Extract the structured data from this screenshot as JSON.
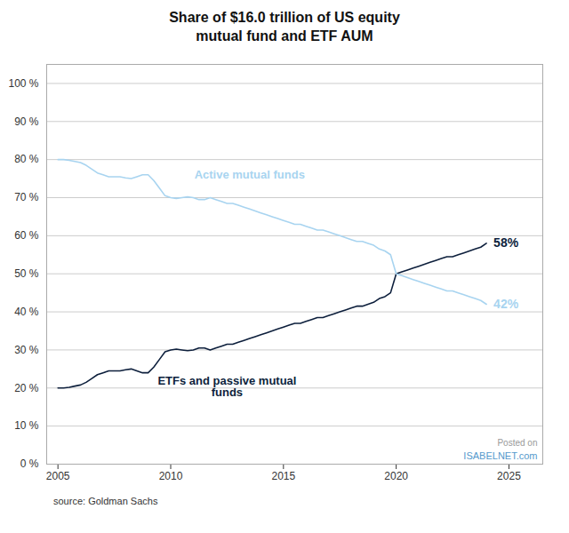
{
  "chart_data": {
    "type": "line",
    "title": "Share of $16.0 trillion of US equity\nmutual fund and ETF AUM",
    "caption": "source: Goldman Sachs",
    "x": [
      2005.0,
      2005.25,
      2005.5,
      2005.75,
      2006.0,
      2006.25,
      2006.5,
      2006.75,
      2007.0,
      2007.25,
      2007.5,
      2007.75,
      2008.0,
      2008.25,
      2008.5,
      2008.75,
      2009.0,
      2009.25,
      2009.5,
      2009.75,
      2010.0,
      2010.25,
      2010.5,
      2010.75,
      2011.0,
      2011.25,
      2011.5,
      2011.75,
      2012.0,
      2012.25,
      2012.5,
      2012.75,
      2013.0,
      2013.25,
      2013.5,
      2013.75,
      2014.0,
      2014.25,
      2014.5,
      2014.75,
      2015.0,
      2015.25,
      2015.5,
      2015.75,
      2016.0,
      2016.25,
      2016.5,
      2016.75,
      2017.0,
      2017.25,
      2017.5,
      2017.75,
      2018.0,
      2018.25,
      2018.5,
      2018.75,
      2019.0,
      2019.25,
      2019.5,
      2019.75,
      2020.0,
      2020.25,
      2020.5,
      2020.75,
      2021.0,
      2021.25,
      2021.5,
      2021.75,
      2022.0,
      2022.25,
      2022.5,
      2022.75,
      2023.0,
      2023.25,
      2023.5,
      2023.75,
      2024.0
    ],
    "series": [
      {
        "name": "ETFs and passive mutual\nfunds",
        "color": "#0d1f3c",
        "values": [
          20.0,
          20.0,
          20.2,
          20.5,
          20.8,
          21.5,
          22.5,
          23.5,
          24.0,
          24.5,
          24.5,
          24.5,
          24.8,
          25.0,
          24.5,
          24.0,
          24.0,
          25.5,
          27.5,
          29.5,
          30.0,
          30.2,
          30.0,
          29.8,
          30.0,
          30.5,
          30.5,
          30.0,
          30.5,
          31.0,
          31.5,
          31.5,
          32.0,
          32.5,
          33.0,
          33.5,
          34.0,
          34.5,
          35.0,
          35.5,
          36.0,
          36.5,
          37.0,
          37.0,
          37.5,
          38.0,
          38.5,
          38.5,
          39.0,
          39.5,
          40.0,
          40.5,
          41.0,
          41.5,
          41.5,
          42.0,
          42.5,
          43.5,
          44.0,
          45.0,
          50.0,
          50.5,
          51.0,
          51.5,
          52.0,
          52.5,
          53.0,
          53.5,
          54.0,
          54.5,
          54.5,
          55.0,
          55.5,
          56.0,
          56.5,
          57.0,
          58.0
        ]
      },
      {
        "name": "Active mutual funds",
        "color": "#a8d4f0",
        "values": [
          80.0,
          80.0,
          79.8,
          79.5,
          79.2,
          78.5,
          77.5,
          76.5,
          76.0,
          75.5,
          75.5,
          75.5,
          75.2,
          75.0,
          75.5,
          76.0,
          76.0,
          74.5,
          72.5,
          70.5,
          70.0,
          69.8,
          70.0,
          70.2,
          70.0,
          69.5,
          69.5,
          70.0,
          69.5,
          69.0,
          68.5,
          68.5,
          68.0,
          67.5,
          67.0,
          66.5,
          66.0,
          65.5,
          65.0,
          64.5,
          64.0,
          63.5,
          63.0,
          63.0,
          62.5,
          62.0,
          61.5,
          61.5,
          61.0,
          60.5,
          60.0,
          59.5,
          59.0,
          58.5,
          58.5,
          58.0,
          57.5,
          56.5,
          56.0,
          55.0,
          50.0,
          49.5,
          49.0,
          48.5,
          48.0,
          47.5,
          47.0,
          46.5,
          46.0,
          45.5,
          45.5,
          45.0,
          44.5,
          44.0,
          43.5,
          43.0,
          42.0
        ]
      }
    ],
    "annotations": [
      {
        "text": "58%",
        "value": 58,
        "color": "#0d1f3c"
      },
      {
        "text": "42%",
        "value": 42,
        "color": "#a8d4f0"
      },
      {
        "text": "Posted on",
        "color": "#999999"
      },
      {
        "text": "ISABELNET.com",
        "color": "#5599cc"
      }
    ],
    "xlim": [
      2004.5,
      2026.5
    ],
    "ylim": [
      0,
      105
    ],
    "xticks": [
      2005,
      2010,
      2015,
      2020,
      2025
    ],
    "yticks": [
      {
        "value": 0,
        "label": "0 %"
      },
      {
        "value": 10,
        "label": "10 %"
      },
      {
        "value": 20,
        "label": "20 %"
      },
      {
        "value": 30,
        "label": "30 %"
      },
      {
        "value": 40,
        "label": "40 %"
      },
      {
        "value": 50,
        "label": "50 %"
      },
      {
        "value": 60,
        "label": "60 %"
      },
      {
        "value": 70,
        "label": "70 %"
      },
      {
        "value": 80,
        "label": "80 %"
      },
      {
        "value": 90,
        "label": "90 %"
      },
      {
        "value": 100,
        "label": "100 %"
      }
    ],
    "grid": true
  }
}
